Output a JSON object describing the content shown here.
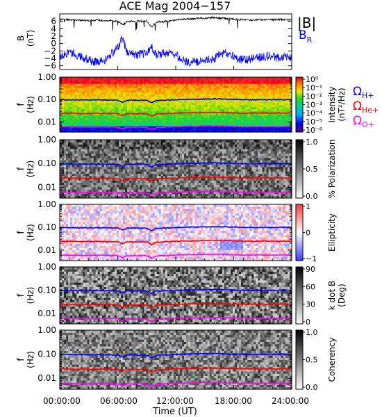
{
  "figure": {
    "title": "ACE Mag 2004−157",
    "xlabel": "Time (UT)",
    "xticks": [
      "00:00:00",
      "06:00:00",
      "12:00:00",
      "18:00:00",
      "24:00:00"
    ],
    "xlim_hours": [
      0,
      24
    ],
    "ion_legend": [
      {
        "main": "Ω",
        "sub": "H+",
        "color": "#0000ff"
      },
      {
        "main": "Ω",
        "sub": "He+",
        "color": "#ff0000"
      },
      {
        "main": "Ω",
        "sub": "O+",
        "color": "#ff00ff"
      }
    ]
  },
  "chart_data": [
    {
      "type": "line",
      "panel": "magnetic-field",
      "ylabel": "B",
      "yunit": "(nT)",
      "ylim": [
        -7,
        8
      ],
      "yticks": [
        "6",
        "4",
        "2",
        "0",
        "−2",
        "−4",
        "−6"
      ],
      "ytick_values": [
        6,
        4,
        2,
        0,
        -2,
        -4,
        -6
      ],
      "series": [
        {
          "name": "|B|",
          "color": "#000000",
          "x": [
            0,
            1,
            2,
            3,
            4,
            5,
            6,
            6.5,
            7,
            8,
            9,
            9.5,
            10,
            11,
            12,
            13,
            14,
            15,
            16,
            17,
            18,
            19,
            20,
            21,
            22,
            23,
            24
          ],
          "y": [
            6.5,
            6.4,
            6.3,
            6.2,
            6.3,
            6.2,
            6.1,
            5.0,
            6.0,
            6.0,
            6.1,
            4.5,
            5.8,
            6.0,
            6.3,
            6.6,
            6.7,
            6.9,
            7.0,
            6.8,
            6.6,
            6.4,
            6.3,
            6.5,
            6.4,
            6.5,
            6.4
          ]
        },
        {
          "name": "B",
          "sub": "R",
          "color": "#0000ff",
          "x": [
            0,
            1,
            2,
            3,
            4,
            5,
            6,
            6.5,
            7,
            8,
            9,
            9.5,
            10,
            11,
            12,
            13,
            14,
            15,
            16,
            17,
            18,
            19,
            20,
            21,
            22,
            23,
            24
          ],
          "y": [
            -4.0,
            -2.0,
            -3.5,
            -4.5,
            -5.0,
            -4.0,
            -1.0,
            1.5,
            -2.5,
            -3.0,
            -2.5,
            -1.0,
            -3.0,
            -2.5,
            -3.0,
            -5.0,
            -5.0,
            -4.5,
            -4.0,
            -2.5,
            -3.5,
            -4.5,
            -4.0,
            -3.5,
            -3.5,
            -4.0,
            -3.5
          ]
        }
      ]
    },
    {
      "type": "heatmap",
      "panel": "intensity",
      "ylabel": "f",
      "yunit": "(Hz)",
      "yscale": "log",
      "ylim": [
        0.0035,
        1.0
      ],
      "yticks": [
        "1.00",
        "0.10",
        "0.01"
      ],
      "ytick_values": [
        1.0,
        0.1,
        0.01
      ],
      "colorbar": {
        "label": "Intensity",
        "unit": "(nT²/Hz)",
        "scale": "log",
        "ticks": [
          "10⁰",
          "10⁻¹",
          "10⁻²",
          "10⁻³",
          "10⁻⁴",
          "10⁻⁵",
          "10⁻⁶"
        ],
        "palette": "rainbow"
      }
    },
    {
      "type": "heatmap",
      "panel": "polarization",
      "ylabel": "f",
      "yunit": "(Hz)",
      "yscale": "log",
      "ylim": [
        0.0035,
        1.0
      ],
      "yticks": [
        "1.00",
        "0.10",
        "0.01"
      ],
      "ytick_values": [
        1.0,
        0.1,
        0.01
      ],
      "colorbar": {
        "label": "% Polarization",
        "unit": "",
        "scale": "linear",
        "ticks": [
          "1.0",
          "0.5",
          "0.0"
        ],
        "palette": "gray"
      }
    },
    {
      "type": "heatmap",
      "panel": "ellipticity",
      "ylabel": "f",
      "yunit": "(Hz)",
      "yscale": "log",
      "ylim": [
        0.0035,
        1.0
      ],
      "yticks": [
        "1.00",
        "0.10",
        "0.01"
      ],
      "ytick_values": [
        1.0,
        0.1,
        0.01
      ],
      "colorbar": {
        "label": "Ellipticity",
        "unit": "",
        "scale": "linear",
        "ticks": [
          "1",
          "0",
          "−1"
        ],
        "palette": "bwr"
      }
    },
    {
      "type": "heatmap",
      "panel": "k-dot-b",
      "ylabel": "f",
      "yunit": "(Hz)",
      "yscale": "log",
      "ylim": [
        0.0035,
        1.0
      ],
      "yticks": [
        "1.00",
        "0.10",
        "0.01"
      ],
      "ytick_values": [
        1.0,
        0.1,
        0.01
      ],
      "colorbar": {
        "label": "k dot B",
        "unit": "(Deg)",
        "scale": "linear",
        "ticks": [
          "90",
          "60",
          "30",
          "0"
        ],
        "palette": "gray"
      }
    },
    {
      "type": "heatmap",
      "panel": "coherency",
      "ylabel": "f",
      "yunit": "(Hz)",
      "yscale": "log",
      "ylim": [
        0.0035,
        1.0
      ],
      "yticks": [
        "1.00",
        "0.10",
        "0.01"
      ],
      "ytick_values": [
        1.0,
        0.1,
        0.01
      ],
      "colorbar": {
        "label": "Coherency",
        "unit": "",
        "scale": "linear",
        "ticks": [
          "1.0",
          "0.5",
          "0.0"
        ],
        "palette": "gray"
      }
    }
  ],
  "gyrofrequency_lines": {
    "x": [
      0,
      1,
      2,
      3,
      4,
      5,
      6,
      6.5,
      7,
      8,
      9,
      9.5,
      10,
      11,
      12,
      13,
      14,
      15,
      16,
      17,
      18,
      19,
      20,
      21,
      22,
      23,
      24
    ],
    "H+": [
      0.098,
      0.096,
      0.095,
      0.094,
      0.095,
      0.094,
      0.093,
      0.075,
      0.092,
      0.092,
      0.093,
      0.07,
      0.09,
      0.093,
      0.097,
      0.101,
      0.102,
      0.105,
      0.106,
      0.104,
      0.101,
      0.098,
      0.097,
      0.099,
      0.098,
      0.099,
      0.098
    ],
    "He+": [
      0.0245,
      0.024,
      0.0238,
      0.0235,
      0.0238,
      0.0235,
      0.0233,
      0.019,
      0.023,
      0.023,
      0.0233,
      0.0175,
      0.0225,
      0.0233,
      0.0243,
      0.0253,
      0.0255,
      0.0263,
      0.0265,
      0.026,
      0.0253,
      0.0245,
      0.0243,
      0.0248,
      0.0245,
      0.0248,
      0.0245
    ],
    "O+": [
      0.0061,
      0.006,
      0.0059,
      0.0059,
      0.0059,
      0.0059,
      0.0058,
      0.0047,
      0.0058,
      0.0058,
      0.0058,
      0.0044,
      0.0056,
      0.0058,
      0.0061,
      0.0063,
      0.0064,
      0.0066,
      0.0066,
      0.0065,
      0.0063,
      0.0061,
      0.0061,
      0.0062,
      0.0061,
      0.0062,
      0.0061
    ]
  }
}
